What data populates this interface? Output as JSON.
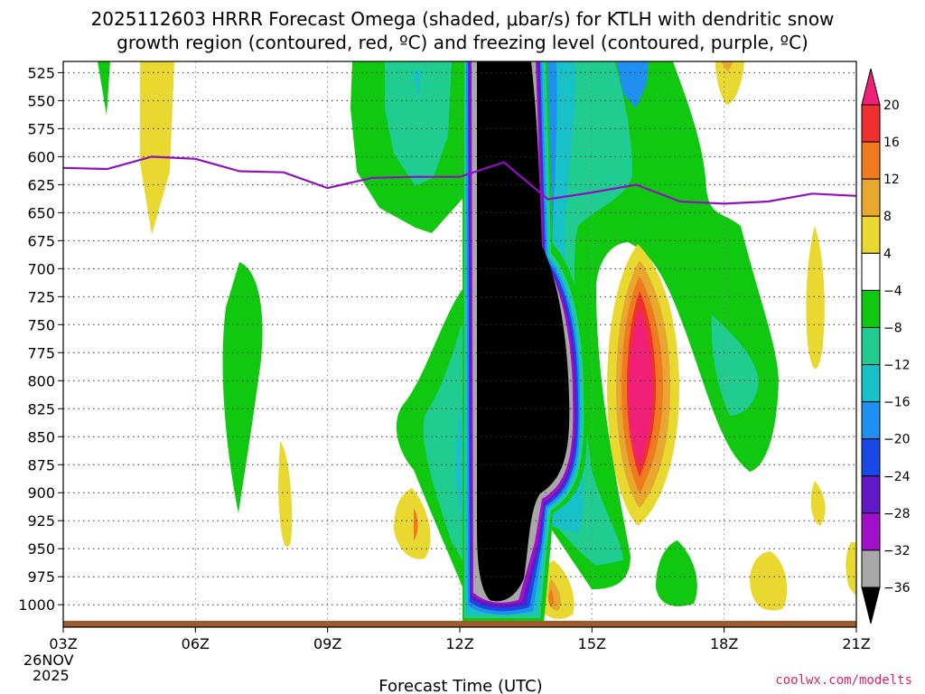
{
  "chart_data": {
    "type": "heatmap",
    "title_line1": "2025112603 HRRR Forecast Omega (shaded, μbar/s) for KTLH with dendritic snow",
    "title_line2": "growth region (contoured, red, ºC) and freezing level (contoured, purple, ºC)",
    "xlabel": "Forecast Time (UTC)",
    "x_ticks": [
      "03Z",
      "06Z",
      "09Z",
      "12Z",
      "15Z",
      "18Z",
      "21Z"
    ],
    "x_date_line1": "26NOV",
    "x_date_line2": "2025",
    "y_ticks": [
      "525",
      "550",
      "575",
      "600",
      "625",
      "650",
      "675",
      "700",
      "725",
      "750",
      "775",
      "800",
      "825",
      "850",
      "875",
      "900",
      "925",
      "950",
      "975",
      "1000"
    ],
    "yrange_hPa": [
      515,
      1020
    ],
    "xrange_hours": [
      3,
      21
    ],
    "colorbar": {
      "labels": [
        "20",
        "16",
        "12",
        "8",
        "4",
        "−4",
        "−8",
        "−12",
        "−16",
        "−20",
        "−24",
        "−28",
        "−32",
        "−36"
      ],
      "colors_top_to_bottom": [
        "#f0207a",
        "#f03030",
        "#f07a20",
        "#e8a830",
        "#e8d830",
        "#ffffff",
        "#10c810",
        "#20cc90",
        "#18c0c8",
        "#2090f0",
        "#1848e8",
        "#6018c8",
        "#a010c8",
        "#a8a8a8",
        "#000000"
      ]
    },
    "freezing_level": {
      "color": "#9010c0",
      "hours": [
        3,
        4,
        5,
        6,
        7,
        8,
        9,
        10,
        11,
        12,
        13,
        14,
        15,
        16,
        17,
        18,
        19,
        20,
        21
      ],
      "pressure_hPa": [
        610,
        611,
        600,
        602,
        613,
        614,
        628,
        619,
        618,
        618,
        605,
        638,
        632,
        625,
        640,
        642,
        640,
        633,
        635
      ]
    },
    "credit": "coolwx.com/modelts"
  }
}
